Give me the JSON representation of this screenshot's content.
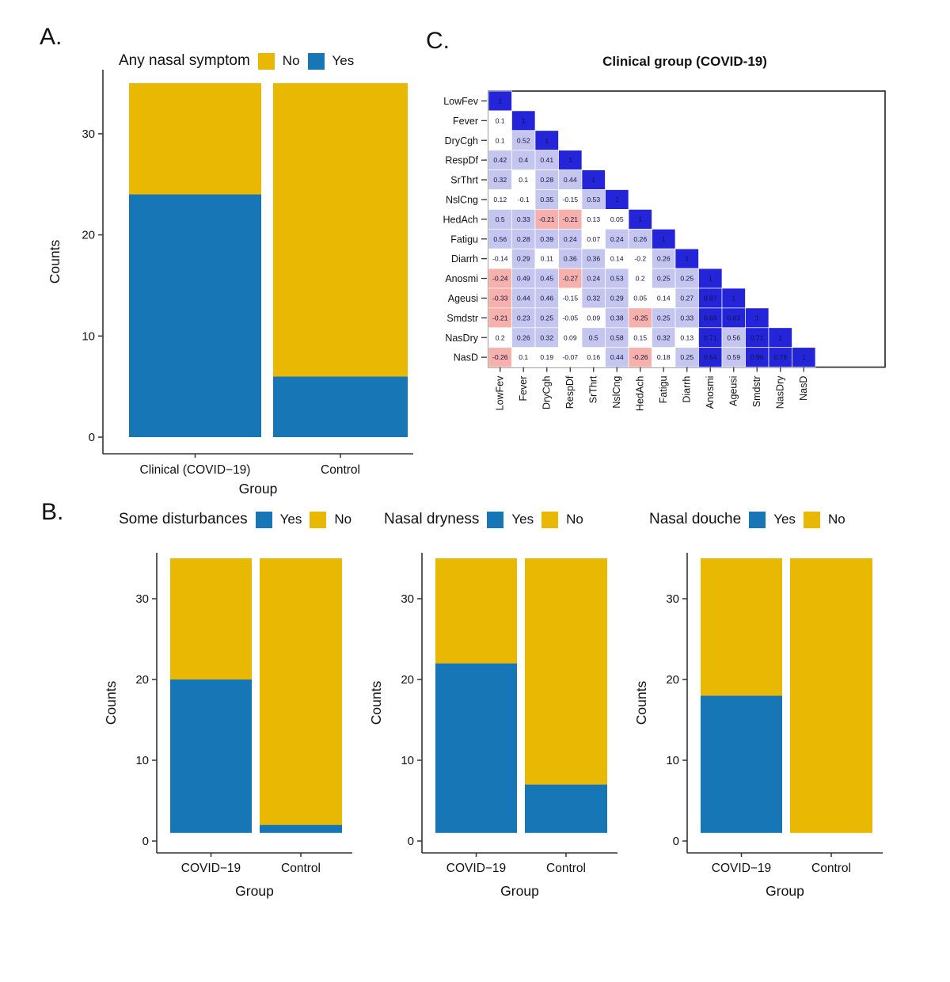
{
  "colors": {
    "yes_blue": "#1777B6",
    "no_yellow": "#E8B802",
    "corr_strong_blue": "#2424D9",
    "corr_mid_blue": "#C5C6F0",
    "corr_pink": "#F7B1AC",
    "corr_white": "#FFFFFF",
    "axis": "#333333"
  },
  "panels": {
    "A": {
      "label": "A."
    },
    "B": {
      "label": "B."
    },
    "C": {
      "label": "C.",
      "title": "Clinical group (COVID-19)"
    }
  },
  "chart_data": [
    {
      "id": "panel-a",
      "type": "bar",
      "stacked": true,
      "legend": {
        "title": "Any nasal symptom",
        "items": [
          {
            "label": "No",
            "color": "#E8B802"
          },
          {
            "label": "Yes",
            "color": "#1777B6"
          }
        ]
      },
      "xlabel": "Group",
      "ylabel": "Counts",
      "yticks": [
        0,
        10,
        20,
        30
      ],
      "ylim": [
        0,
        37
      ],
      "categories": [
        "Clinical (COVID−19)",
        "Control"
      ],
      "bars": [
        {
          "category": "Clinical (COVID−19)",
          "segments": [
            {
              "name": "Yes",
              "color": "yes_blue",
              "from": 0,
              "to": 24
            },
            {
              "name": "No",
              "color": "no_yellow",
              "from": 24,
              "to": 35
            }
          ]
        },
        {
          "category": "Control",
          "segments": [
            {
              "name": "Yes",
              "color": "yes_blue",
              "from": 0,
              "to": 6
            },
            {
              "name": "No",
              "color": "no_yellow",
              "from": 6,
              "to": 35
            }
          ]
        }
      ]
    },
    {
      "id": "panel-b1",
      "type": "bar",
      "stacked": true,
      "legend": {
        "title": "Some disturbances",
        "items": [
          {
            "label": "Yes",
            "color": "#1777B6"
          },
          {
            "label": "No",
            "color": "#E8B802"
          }
        ]
      },
      "xlabel": "Group",
      "ylabel": "Counts",
      "yticks": [
        0,
        10,
        20,
        30
      ],
      "ylim": [
        0,
        37
      ],
      "categories": [
        "COVID−19",
        "Control"
      ],
      "bars": [
        {
          "category": "COVID−19",
          "segments": [
            {
              "name": "Yes",
              "color": "yes_blue",
              "from": 1,
              "to": 20
            },
            {
              "name": "No",
              "color": "no_yellow",
              "from": 20,
              "to": 35
            }
          ]
        },
        {
          "category": "Control",
          "segments": [
            {
              "name": "Yes",
              "color": "yes_blue",
              "from": 1,
              "to": 2
            },
            {
              "name": "No",
              "color": "no_yellow",
              "from": 2,
              "to": 35
            }
          ]
        }
      ]
    },
    {
      "id": "panel-b2",
      "type": "bar",
      "stacked": true,
      "legend": {
        "title": "Nasal dryness",
        "items": [
          {
            "label": "Yes",
            "color": "#1777B6"
          },
          {
            "label": "No",
            "color": "#E8B802"
          }
        ]
      },
      "xlabel": "Group",
      "ylabel": "Counts",
      "yticks": [
        0,
        10,
        20,
        30
      ],
      "ylim": [
        0,
        37
      ],
      "categories": [
        "COVID−19",
        "Control"
      ],
      "bars": [
        {
          "category": "COVID−19",
          "segments": [
            {
              "name": "Yes",
              "color": "yes_blue",
              "from": 1,
              "to": 22
            },
            {
              "name": "No",
              "color": "no_yellow",
              "from": 22,
              "to": 35
            }
          ]
        },
        {
          "category": "Control",
          "segments": [
            {
              "name": "Yes",
              "color": "yes_blue",
              "from": 1,
              "to": 7
            },
            {
              "name": "No",
              "color": "no_yellow",
              "from": 7,
              "to": 35
            }
          ]
        }
      ]
    },
    {
      "id": "panel-b3",
      "type": "bar",
      "stacked": true,
      "legend": {
        "title": "Nasal douche",
        "items": [
          {
            "label": "Yes",
            "color": "#1777B6"
          },
          {
            "label": "No",
            "color": "#E8B802"
          }
        ]
      },
      "xlabel": "Group",
      "ylabel": "Counts",
      "yticks": [
        0,
        10,
        20,
        30
      ],
      "ylim": [
        0,
        37
      ],
      "categories": [
        "COVID−19",
        "Control"
      ],
      "bars": [
        {
          "category": "COVID−19",
          "segments": [
            {
              "name": "Yes",
              "color": "yes_blue",
              "from": 1,
              "to": 18
            },
            {
              "name": "No",
              "color": "no_yellow",
              "from": 18,
              "to": 35
            }
          ]
        },
        {
          "category": "Control",
          "segments": [
            {
              "name": "No",
              "color": "no_yellow",
              "from": 1,
              "to": 35
            }
          ]
        }
      ]
    },
    {
      "id": "panel-c",
      "type": "heatmap",
      "title": "Clinical group (COVID-19)",
      "labels": [
        "LowFev",
        "Fever",
        "DryCgh",
        "RespDf",
        "SrThrt",
        "NslCng",
        "HedAch",
        "Fatigu",
        "Diarrh",
        "Anosmi",
        "Ageusi",
        "Smdstr",
        "NasDry",
        "NasD"
      ],
      "matrix_lower_triangle": [
        [
          1
        ],
        [
          0.1,
          1
        ],
        [
          0.1,
          0.52,
          1
        ],
        [
          0.42,
          0.4,
          0.41,
          1
        ],
        [
          0.32,
          0.1,
          0.28,
          0.44,
          1
        ],
        [
          0.12,
          -0.1,
          0.35,
          -0.15,
          0.53,
          1
        ],
        [
          0.5,
          0.33,
          -0.21,
          -0.21,
          0.13,
          0.05,
          1
        ],
        [
          0.56,
          0.28,
          0.39,
          0.24,
          0.07,
          0.24,
          0.26,
          1
        ],
        [
          -0.14,
          0.29,
          0.11,
          0.36,
          0.36,
          0.14,
          -0.2,
          0.26,
          1
        ],
        [
          -0.24,
          0.49,
          0.45,
          -0.27,
          0.24,
          0.53,
          0.2,
          0.25,
          0.25,
          1
        ],
        [
          -0.33,
          0.44,
          0.46,
          -0.15,
          0.32,
          0.29,
          0.05,
          0.14,
          0.27,
          0.87,
          1
        ],
        [
          -0.21,
          0.23,
          0.25,
          -0.05,
          0.09,
          0.38,
          -0.25,
          0.25,
          0.33,
          0.69,
          0.63,
          1
        ],
        [
          0.2,
          0.26,
          0.32,
          0.09,
          0.5,
          0.58,
          0.15,
          0.32,
          0.13,
          0.71,
          0.56,
          0.71,
          1
        ],
        [
          -0.26,
          0.1,
          0.19,
          -0.07,
          0.16,
          0.44,
          -0.26,
          0.18,
          0.25,
          0.64,
          0.59,
          0.96,
          0.78,
          1
        ]
      ],
      "color_scale_note": "pink <= -0.21, white -0.2..0.2, light blue 0.21..0.59, strong blue >= 0.6"
    }
  ]
}
